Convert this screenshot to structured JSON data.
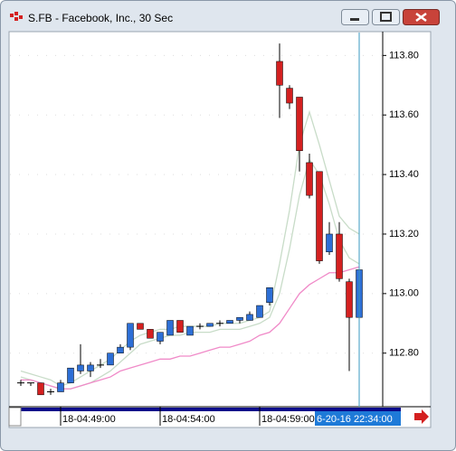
{
  "window": {
    "title": "S.FB - Facebook, Inc., 30 Sec"
  },
  "chart_data": {
    "type": "candlestick",
    "categories": [
      null,
      null,
      null,
      null,
      "18-04:49:00",
      null,
      null,
      null,
      null,
      null,
      null,
      null,
      null,
      null,
      "18-04:54:00",
      null,
      null,
      null,
      null,
      null,
      null,
      null,
      null,
      null,
      "18-04:59:00",
      null,
      null,
      null,
      null,
      null,
      null,
      null,
      null,
      null,
      null
    ],
    "cursor_label": "6-20-16 22:34:00",
    "open": [
      112.7,
      112.7,
      112.7,
      112.67,
      112.67,
      112.7,
      112.74,
      112.74,
      112.76,
      112.76,
      112.8,
      112.82,
      112.9,
      112.88,
      112.84,
      112.86,
      112.91,
      112.86,
      112.89,
      112.89,
      112.9,
      112.9,
      112.91,
      112.91,
      112.92,
      112.97,
      113.78,
      113.69,
      113.66,
      113.44,
      113.41,
      113.14,
      113.2,
      113.04,
      112.92
    ],
    "close": [
      112.7,
      112.7,
      112.66,
      112.67,
      112.7,
      112.75,
      112.76,
      112.76,
      112.76,
      112.8,
      112.82,
      112.9,
      112.88,
      112.85,
      112.87,
      112.91,
      112.87,
      112.89,
      112.89,
      112.9,
      112.9,
      112.91,
      112.92,
      112.93,
      112.96,
      113.02,
      113.7,
      113.64,
      113.48,
      113.33,
      113.11,
      113.2,
      113.05,
      112.92,
      113.08
    ],
    "high": [
      112.71,
      112.7,
      112.7,
      112.68,
      112.71,
      112.75,
      112.83,
      112.77,
      112.78,
      112.8,
      112.83,
      112.9,
      112.9,
      112.88,
      112.87,
      112.91,
      112.91,
      112.89,
      112.9,
      112.9,
      112.91,
      112.91,
      112.92,
      112.94,
      112.96,
      113.02,
      113.84,
      113.7,
      113.66,
      113.47,
      113.41,
      113.24,
      113.24,
      113.05,
      113.1
    ],
    "low": [
      112.69,
      112.69,
      112.66,
      112.66,
      112.67,
      112.7,
      112.73,
      112.72,
      112.75,
      112.76,
      112.8,
      112.81,
      112.88,
      112.85,
      112.83,
      112.86,
      112.87,
      112.86,
      112.88,
      112.89,
      112.89,
      112.9,
      112.9,
      112.91,
      112.92,
      112.96,
      113.59,
      113.62,
      113.41,
      113.32,
      113.1,
      113.13,
      113.04,
      112.74,
      112.91
    ],
    "up_color": "#2d6fd6",
    "down_color": "#d42020",
    "series": [
      {
        "color": "#c8dcc8",
        "values": [
          112.74,
          112.73,
          112.72,
          112.71,
          112.69,
          112.7,
          112.72,
          112.74,
          112.76,
          112.78,
          112.81,
          112.84,
          112.86,
          112.87,
          112.88,
          112.88,
          112.89,
          112.89,
          112.89,
          112.89,
          112.9,
          112.9,
          112.9,
          112.91,
          112.92,
          112.94,
          113.1,
          113.28,
          113.5,
          113.61,
          113.5,
          113.38,
          113.26,
          113.22,
          113.2
        ]
      },
      {
        "color": "#c8dcc8",
        "values": [
          112.72,
          112.71,
          112.7,
          112.69,
          112.68,
          112.68,
          112.69,
          112.7,
          112.72,
          112.74,
          112.77,
          112.8,
          112.83,
          112.84,
          112.85,
          112.86,
          112.86,
          112.87,
          112.87,
          112.87,
          112.88,
          112.88,
          112.88,
          112.89,
          112.9,
          112.92,
          113.0,
          113.15,
          113.33,
          113.45,
          113.4,
          113.3,
          113.18,
          113.12,
          113.1
        ]
      },
      {
        "color": "#f08ac8",
        "values": [
          112.71,
          112.71,
          112.7,
          112.69,
          112.68,
          112.68,
          112.69,
          112.7,
          112.71,
          112.72,
          112.74,
          112.75,
          112.76,
          112.77,
          112.78,
          112.78,
          112.79,
          112.79,
          112.8,
          112.81,
          112.82,
          112.82,
          112.83,
          112.84,
          112.86,
          112.87,
          112.9,
          112.95,
          113.0,
          113.03,
          113.05,
          113.07,
          113.07,
          113.08,
          113.09
        ]
      }
    ],
    "ylim": [
      112.62,
      113.88
    ],
    "yticks": [
      {
        "value": 112.8,
        "label": "112.80"
      },
      {
        "value": 113.0,
        "label": "113.00"
      },
      {
        "value": 113.2,
        "label": "113.20"
      },
      {
        "value": 113.4,
        "label": "113.40"
      },
      {
        "value": 113.6,
        "label": "113.60"
      },
      {
        "value": 113.8,
        "label": "113.80"
      }
    ],
    "grid": true
  }
}
